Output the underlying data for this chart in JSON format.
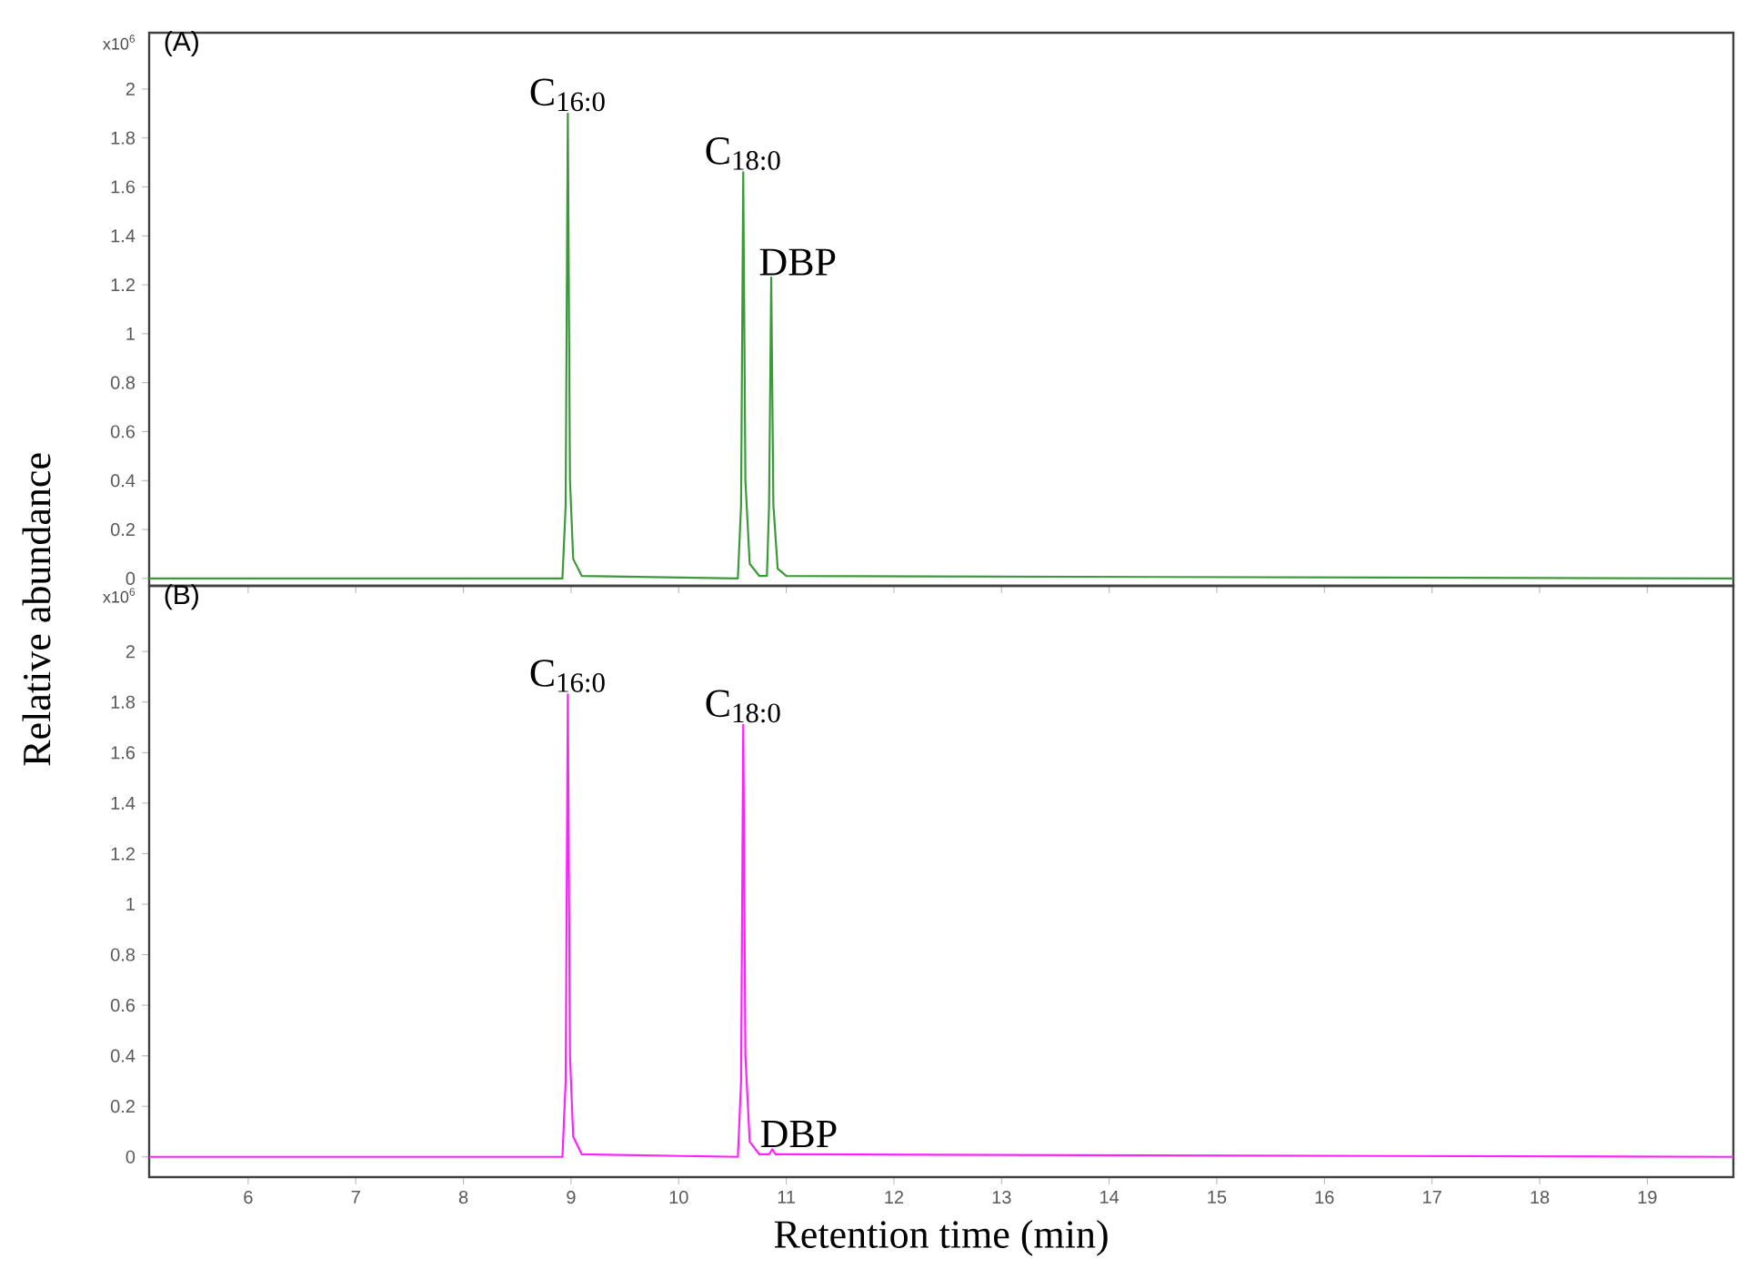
{
  "chart_data": [
    {
      "type": "line",
      "title": "(A)",
      "ylabel": "Relative abundance",
      "xlim": [
        5.08,
        19.8
      ],
      "ylim": [
        -0.03,
        2.23
      ],
      "xticks": [
        6,
        7,
        8,
        9,
        10,
        11,
        12,
        13,
        14,
        15,
        16,
        17,
        18,
        19
      ],
      "yticks": [
        0,
        0.2,
        0.4,
        0.6,
        0.8,
        1,
        1.2,
        1.4,
        1.6,
        1.8,
        2
      ],
      "tick_labels": "y",
      "grid": false,
      "marker": "none",
      "line_style": "solid",
      "annotations": [
        "x10$^{6}$",
        {
          "text": "C$_{16:0}$",
          "x": 8.97,
          "y": 1.9
        },
        {
          "text": "C$_{18:0}$",
          "x": 10.6,
          "y": 1.66
        },
        {
          "text": "DBP",
          "x": 10.86,
          "y": 1.23
        }
      ],
      "series": [
        {
          "color": "#3a9a3a",
          "x": [
            5.08,
            8.92,
            8.95,
            8.97,
            8.99,
            9.02,
            9.1,
            10.55,
            10.58,
            10.6,
            10.62,
            10.66,
            10.75,
            10.82,
            10.84,
            10.86,
            10.88,
            10.92,
            11.0,
            19.8
          ],
          "values": [
            0,
            0,
            0.3,
            1.9,
            0.4,
            0.08,
            0.01,
            0,
            0.3,
            1.66,
            0.4,
            0.06,
            0.01,
            0.01,
            0.3,
            1.23,
            0.3,
            0.04,
            0.01,
            0
          ]
        }
      ]
    },
    {
      "type": "line",
      "title": "(B)",
      "xlabel": "Retention time (min)",
      "xlim": [
        5.08,
        19.8
      ],
      "ylim": [
        -0.08,
        2.26
      ],
      "xticks": [
        6,
        7,
        8,
        9,
        10,
        11,
        12,
        13,
        14,
        15,
        16,
        17,
        18,
        19
      ],
      "yticks": [
        0,
        0.2,
        0.4,
        0.6,
        0.8,
        1,
        1.2,
        1.4,
        1.6,
        1.8,
        2
      ],
      "grid": false,
      "marker": "none",
      "line_style": "solid",
      "annotations": [
        "x10$^{6}$",
        {
          "text": "C$_{16:0}$",
          "x": 8.97,
          "y": 1.83
        },
        {
          "text": "C$_{18:0}$",
          "x": 10.6,
          "y": 1.71
        },
        {
          "text": "DBP",
          "x": 10.87,
          "y": 0.03
        }
      ],
      "series": [
        {
          "color": "#ff22ff",
          "x": [
            5.08,
            8.92,
            8.95,
            8.97,
            8.99,
            9.02,
            9.1,
            10.55,
            10.58,
            10.6,
            10.62,
            10.66,
            10.75,
            10.84,
            10.87,
            10.9,
            11.0,
            19.8
          ],
          "values": [
            0,
            0,
            0.3,
            1.83,
            0.4,
            0.08,
            0.01,
            0,
            0.3,
            1.71,
            0.4,
            0.06,
            0.01,
            0.01,
            0.03,
            0.01,
            0.01,
            0
          ]
        }
      ]
    }
  ]
}
